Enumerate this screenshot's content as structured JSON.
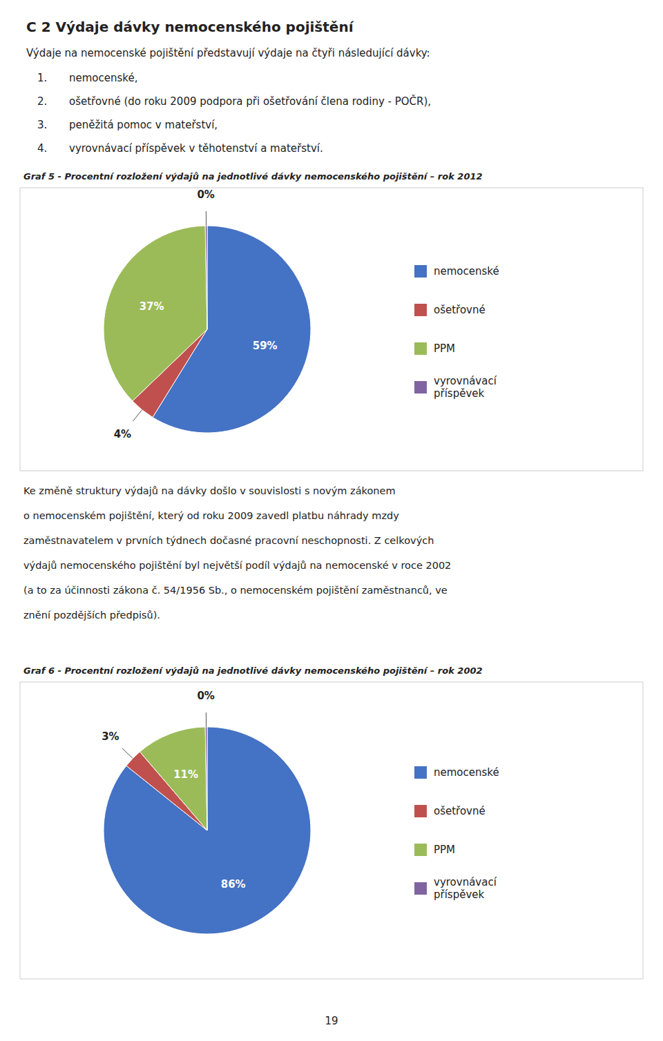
{
  "title": "C 2 Výdaje dávky nemocenského pojištění",
  "intro": "Výdaje na nemocenské pojištění představují výdaje na čtyři následující dávky:",
  "item_numbers": [
    "1.",
    "2.",
    "3.",
    "4."
  ],
  "items": [
    "nemocenské,",
    "ošetřovné (do roku 2009 podpora při ošetřování člena rodiny - POČR),",
    "peněžitá pomoc v mateřství,",
    "vyrovnávací příspěvek v těhotenství a mateřství."
  ],
  "text": [
    "Ke změně struktury výdajů na dávky došlo v souvislosti s novým zákonem",
    "o nemocenském pojištění, který od roku 2009 zavedl platbu náhrady mzdy",
    "zaměstnavatelem v prvních týdnech dočasné pracovní neschopnosti. Z celkových",
    "výdajů nemocenského pojištění byl největší podíl výdajů na nemocenské v roce 2002",
    "(a to za účinnosti zákona č. 54/1956 Sb., o nemocenském pojištění zaměstnanců, ve",
    "znění pozdějších předpisů)."
  ],
  "page_number": "19",
  "chart_data": [
    {
      "type": "pie",
      "title": "Graf 5 - Procentní rozložení výdajů na jednotlivé dávky nemocenského pojištění – rok 2012",
      "categories": [
        "nemocenské",
        "ošetřovné",
        "PPM",
        "vyrovnávací\npříspěvek"
      ],
      "values": [
        59,
        4,
        37,
        0.3
      ],
      "value_labels": [
        "59%",
        "4%",
        "37%",
        "0%"
      ],
      "colors": [
        "#4472C4",
        "#C0504D",
        "#9BBB59",
        "#8064A2"
      ],
      "data_labels": true,
      "legend": "right"
    },
    {
      "type": "pie",
      "title": "Graf 6 - Procentní rozložení výdajů na jednotlivé dávky nemocenského pojištění – rok 2002",
      "categories": [
        "nemocenské",
        "ošetřovné",
        "PPM",
        "vyrovnávací\npříspěvek"
      ],
      "values": [
        86,
        3,
        11,
        0.3
      ],
      "value_labels": [
        "86%",
        "3%",
        "11%",
        "0%"
      ],
      "colors": [
        "#4472C4",
        "#C0504D",
        "#9BBB59",
        "#8064A2"
      ],
      "data_labels": true,
      "legend": "right"
    }
  ]
}
